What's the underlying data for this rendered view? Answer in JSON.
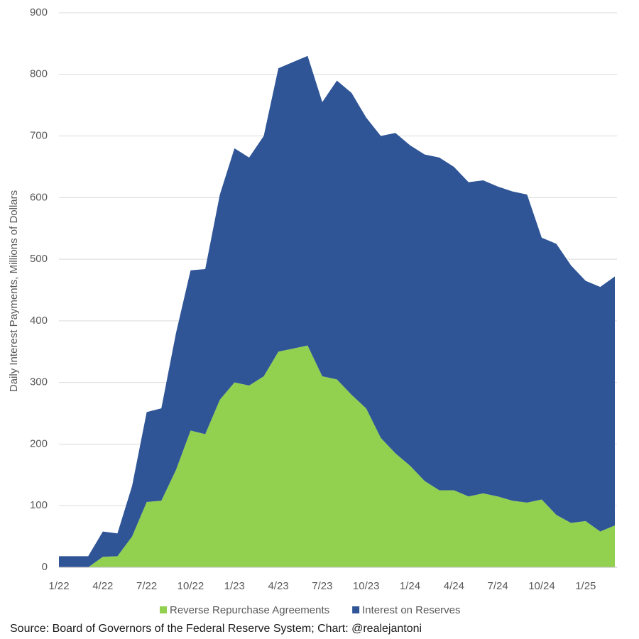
{
  "chart_data": {
    "type": "stacked_area",
    "y_label": "Daily Interest Payments, Millions of Dollars",
    "source": "Source: Board of Governors of the Federal Reserve System; Chart: @realejantoni",
    "categories": [
      "1/22",
      null,
      null,
      "4/22",
      null,
      null,
      "7/22",
      null,
      null,
      "10/22",
      null,
      null,
      "1/23",
      null,
      null,
      "4/23",
      null,
      null,
      "7/23",
      null,
      null,
      "10/23",
      null,
      null,
      "1/24",
      null,
      null,
      "4/24",
      null,
      null,
      "7/24",
      null,
      null,
      "10/24",
      null,
      null,
      "1/25",
      null,
      null
    ],
    "series": [
      {
        "name": "Reverse Repurchase Agreements",
        "color": "#92d050",
        "values": [
          0,
          0,
          0,
          17,
          18,
          50,
          106,
          108,
          158,
          222,
          216,
          272,
          300,
          295,
          310,
          350,
          355,
          360,
          310,
          305,
          280,
          258,
          210,
          185,
          165,
          140,
          125,
          125,
          115,
          120,
          115,
          108,
          105,
          110,
          85,
          72,
          75,
          58,
          68
        ]
      },
      {
        "name": "Interest on Reserves",
        "color": "#2f5597",
        "values": [
          18,
          18,
          18,
          41,
          37,
          82,
          146,
          150,
          222,
          260,
          268,
          333,
          380,
          370,
          390,
          460,
          465,
          470,
          445,
          485,
          490,
          472,
          490,
          520,
          520,
          530,
          540,
          525,
          510,
          508,
          503,
          502,
          500,
          425,
          440,
          418,
          390,
          397,
          404
        ]
      }
    ],
    "ylim": [
      0,
      900
    ],
    "yticks": [
      0,
      100,
      200,
      300,
      400,
      500,
      600,
      700,
      800,
      900
    ],
    "grid": true,
    "legend": "bottom"
  }
}
